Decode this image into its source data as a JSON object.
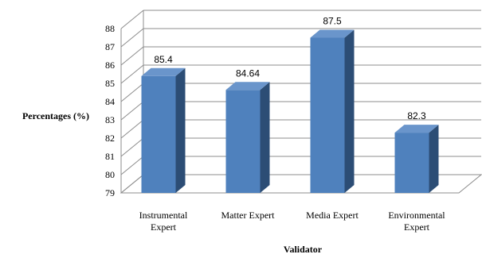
{
  "chart_data": {
    "type": "bar",
    "style": "3d-column",
    "categories": [
      [
        "Instrumental",
        "Expert"
      ],
      [
        "Matter Expert"
      ],
      [
        "Media Expert"
      ],
      [
        "Environmental",
        "Expert"
      ]
    ],
    "values": [
      85.4,
      84.64,
      87.5,
      82.3
    ],
    "data_labels": [
      "85.4",
      "84.64",
      "87.5",
      "82.3"
    ],
    "xlabel": "Validator",
    "ylabel": "Percentages (%)",
    "ylim": [
      79,
      88
    ],
    "yticks": [
      79,
      80,
      81,
      82,
      83,
      84,
      85,
      86,
      87,
      88
    ],
    "grid": true,
    "legend": "none",
    "colors": {
      "bar_front": "#4f81bd",
      "bar_side": "#2c4d75",
      "bar_top": "#6a95cb",
      "grid": "#8c8c8c",
      "wall": "#ffffff"
    }
  }
}
